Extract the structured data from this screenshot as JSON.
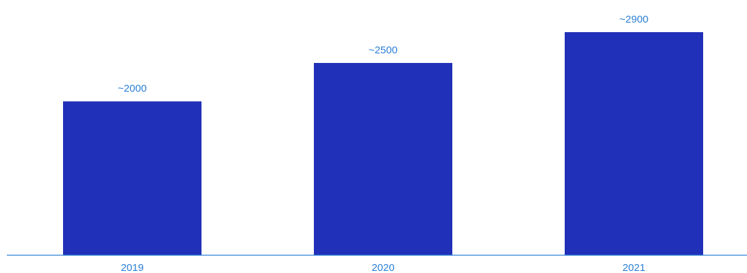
{
  "chart_data": {
    "type": "bar",
    "categories": [
      "2019",
      "2020",
      "2021"
    ],
    "values": [
      2000,
      2500,
      2900
    ],
    "data_labels": [
      "~2000",
      "~2500",
      "~2900"
    ],
    "title": "",
    "xlabel": "",
    "ylabel": "",
    "ylim": [
      0,
      3000
    ],
    "grid": false,
    "legend": "none",
    "colors": {
      "bar": "#2130b8",
      "label": "#2a7fd6",
      "axis": "#2a7fd6"
    }
  }
}
